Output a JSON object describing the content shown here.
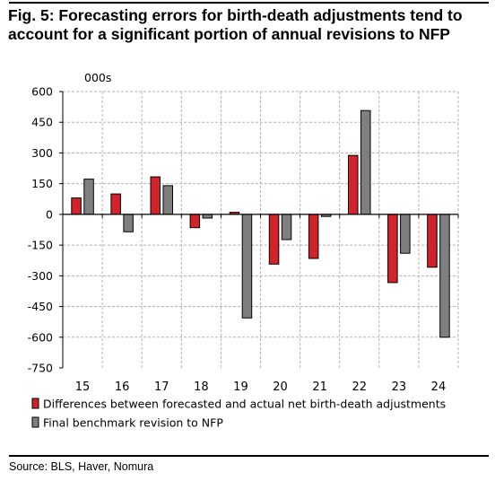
{
  "title_lines": [
    "Fig. 5: Forecasting errors for birth-death adjustments tend to",
    "account for a significant portion of annual revisions to NFP"
  ],
  "source": "Source: BLS, Haver, Nomura",
  "chart_data": {
    "type": "bar",
    "unit_label": "000s",
    "categories": [
      "15",
      "16",
      "17",
      "18",
      "19",
      "20",
      "21",
      "22",
      "23",
      "24"
    ],
    "series": [
      {
        "name": "Differences between forecasted and actual net birth-death adjustments",
        "color": "#d2232a",
        "values": [
          80,
          100,
          183,
          -65,
          10,
          -243,
          -215,
          288,
          -333,
          -258
        ]
      },
      {
        "name": "Final benchmark revision to NFP",
        "color": "#7f7f7f",
        "values": [
          172,
          -85,
          140,
          -18,
          -506,
          -123,
          -10,
          507,
          -190,
          -600
        ]
      }
    ],
    "ylim": [
      -750,
      600
    ],
    "yticks": [
      600,
      450,
      300,
      150,
      0,
      -150,
      -300,
      -450,
      -600,
      -750
    ],
    "grid": true,
    "legend_position": "bottom-left"
  }
}
